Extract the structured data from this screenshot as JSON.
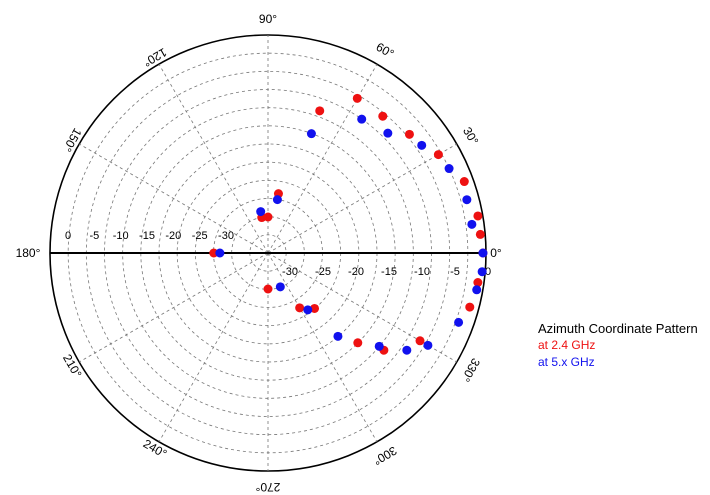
{
  "chart_data": {
    "type": "scatter",
    "subtype": "polar",
    "title": "",
    "radial_ticks": [
      "0",
      "-5",
      "-10",
      "-15",
      "-20",
      "-25",
      "-30"
    ],
    "radial_range": [
      -30,
      0
    ],
    "radial_unit": "dB",
    "angle_labels": [
      {
        "deg": 0,
        "text": "0°"
      },
      {
        "deg": 30,
        "text": "30°"
      },
      {
        "deg": 60,
        "text": "60°"
      },
      {
        "deg": 90,
        "text": "90°"
      },
      {
        "deg": 120,
        "text": "120°"
      },
      {
        "deg": 150,
        "text": "150°"
      },
      {
        "deg": 180,
        "text": "180°"
      },
      {
        "deg": 210,
        "text": "210°"
      },
      {
        "deg": 240,
        "text": "240°"
      },
      {
        "deg": 270,
        "text": "270°"
      },
      {
        "deg": 300,
        "text": "300°"
      },
      {
        "deg": 330,
        "text": "330°"
      }
    ],
    "grid": true,
    "legend": {
      "title": "Azimuth Coordinate Pattern",
      "position": "right"
    },
    "series": [
      {
        "name": "at 2.4 GHz",
        "color": "#ee1111",
        "points": [
          {
            "angle": 0,
            "r": -0.5
          },
          {
            "angle": 5,
            "r": -0.8
          },
          {
            "angle": 10,
            "r": -0.8
          },
          {
            "angle": 20,
            "r": -1.5
          },
          {
            "angle": 30,
            "r": -3.5
          },
          {
            "angle": 40,
            "r": -5.5
          },
          {
            "angle": 50,
            "r": -6.5
          },
          {
            "angle": 60,
            "r": -6.5
          },
          {
            "angle": 70,
            "r": -11
          },
          {
            "angle": 80,
            "r": -26
          },
          {
            "angle": 90,
            "r": -31
          },
          {
            "angle": 100,
            "r": -30
          },
          {
            "angle": 180,
            "r": -27
          },
          {
            "angle": 270,
            "r": -35
          },
          {
            "angle": 300,
            "r": -25.5
          },
          {
            "angle": 310,
            "r": -24
          },
          {
            "angle": 315,
            "r": -15
          },
          {
            "angle": 320,
            "r": -11
          },
          {
            "angle": 330,
            "r": -7
          },
          {
            "angle": 345,
            "r": -1.5
          },
          {
            "angle": 352,
            "r": -1
          }
        ]
      },
      {
        "name": "at 5.x GHz",
        "color": "#1111ee",
        "points": [
          {
            "angle": 0,
            "r": -0.5
          },
          {
            "angle": 8,
            "r": -2
          },
          {
            "angle": 15,
            "r": -2
          },
          {
            "angle": 25,
            "r": -3
          },
          {
            "angle": 35,
            "r": -5
          },
          {
            "angle": 45,
            "r": -8
          },
          {
            "angle": 55,
            "r": -9
          },
          {
            "angle": 70,
            "r": -15
          },
          {
            "angle": 80,
            "r": -27
          },
          {
            "angle": 100,
            "r": -29
          },
          {
            "angle": 180,
            "r": -28
          },
          {
            "angle": 290,
            "r": -32
          },
          {
            "angle": 305,
            "r": -24.5
          },
          {
            "angle": 310,
            "r": -18
          },
          {
            "angle": 320,
            "r": -12
          },
          {
            "angle": 325,
            "r": -8
          },
          {
            "angle": 330,
            "r": -5.5
          },
          {
            "angle": 340,
            "r": -2.5
          },
          {
            "angle": 350,
            "r": -1
          },
          {
            "angle": 355,
            "r": -0.5
          }
        ]
      }
    ]
  }
}
